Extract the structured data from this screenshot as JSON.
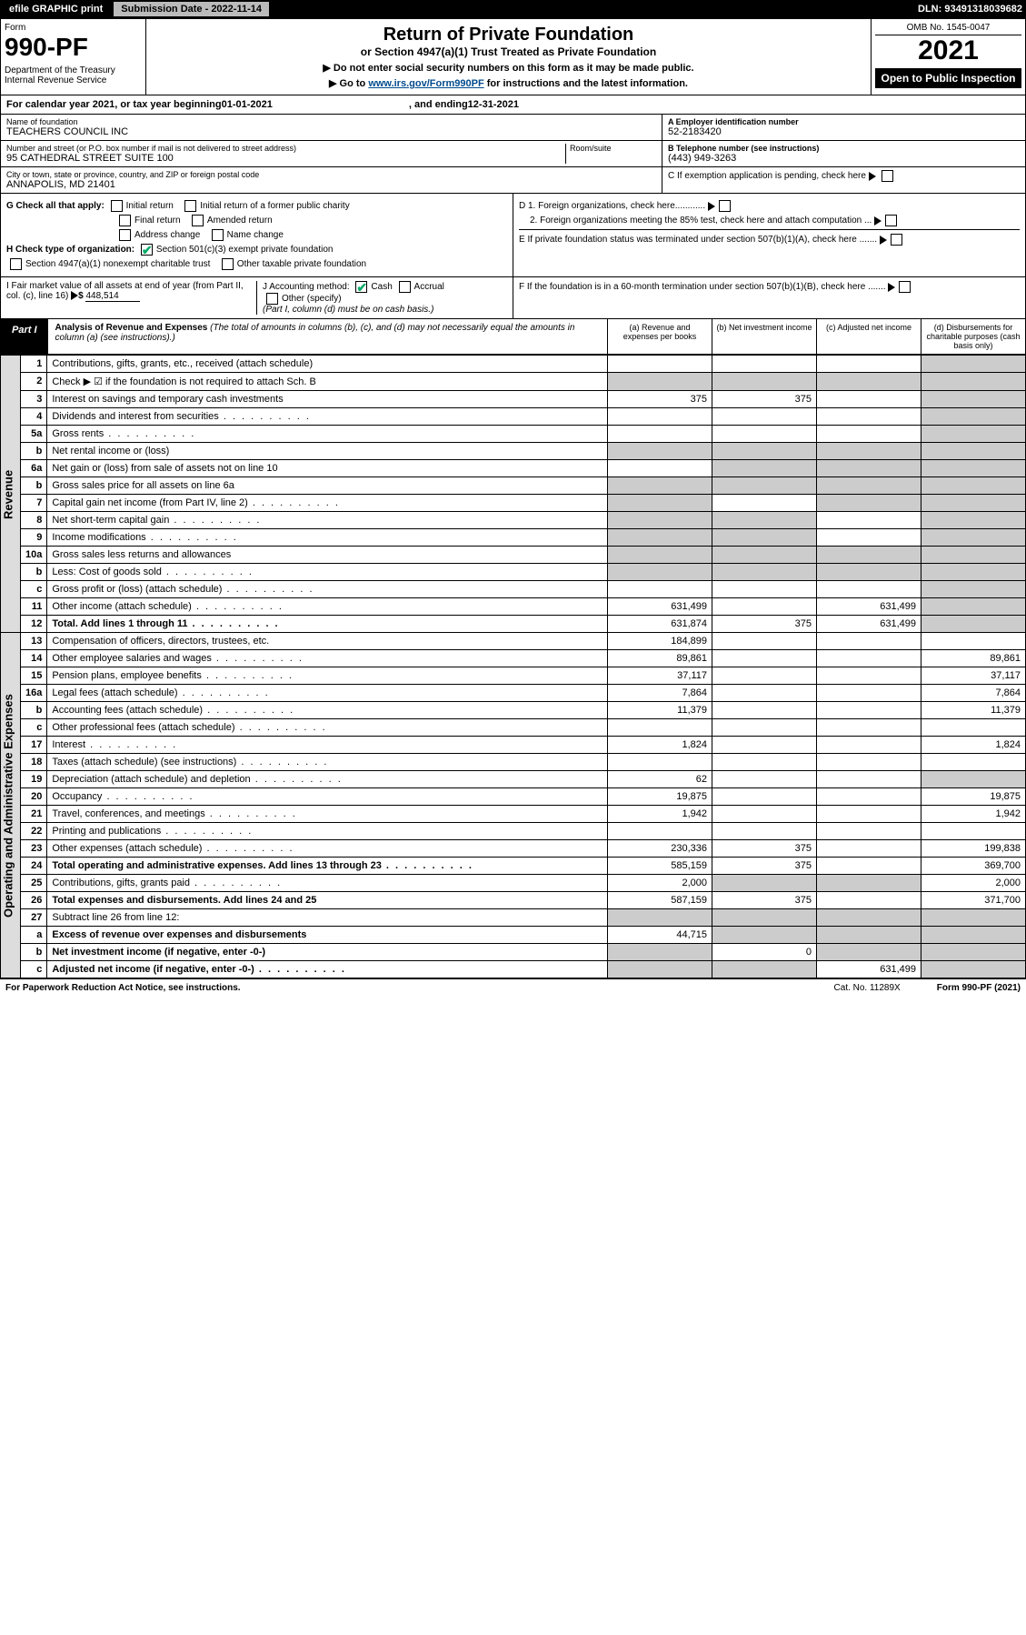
{
  "topbar": {
    "efile": "efile GRAPHIC print",
    "subdate_label": "Submission Date - 2022-11-14",
    "dln": "DLN: 93491318039682"
  },
  "header": {
    "form_label": "Form",
    "form_number": "990-PF",
    "dept": "Department of the Treasury\nInternal Revenue Service",
    "title": "Return of Private Foundation",
    "subtitle": "or Section 4947(a)(1) Trust Treated as Private Foundation",
    "note1": "▶ Do not enter social security numbers on this form as it may be made public.",
    "note2_prefix": "▶ Go to ",
    "note2_link": "www.irs.gov/Form990PF",
    "note2_suffix": " for instructions and the latest information.",
    "omb": "OMB No. 1545-0047",
    "year": "2021",
    "open": "Open to Public Inspection"
  },
  "calyear": {
    "prefix": "For calendar year 2021, or tax year beginning ",
    "begin": "01-01-2021",
    "mid": ", and ending ",
    "end": "12-31-2021"
  },
  "info": {
    "name_label": "Name of foundation",
    "name": "TEACHERS COUNCIL INC",
    "addr_label": "Number and street (or P.O. box number if mail is not delivered to street address)",
    "addr": "95 CATHEDRAL STREET SUITE 100",
    "room_label": "Room/suite",
    "city_label": "City or town, state or province, country, and ZIP or foreign postal code",
    "city": "ANNAPOLIS, MD  21401",
    "ein_label": "A Employer identification number",
    "ein": "52-2183420",
    "phone_label": "B Telephone number (see instructions)",
    "phone": "(443) 949-3263",
    "c_label": "C If exemption application is pending, check here",
    "d1": "D 1. Foreign organizations, check here............",
    "d2": "2. Foreign organizations meeting the 85% test, check here and attach computation ...",
    "e": "E  If private foundation status was terminated under section 507(b)(1)(A), check here .......",
    "f": "F  If the foundation is in a 60-month termination under section 507(b)(1)(B), check here ......."
  },
  "g": {
    "label": "G Check all that apply:",
    "opts": [
      "Initial return",
      "Initial return of a former public charity",
      "Final return",
      "Amended return",
      "Address change",
      "Name change"
    ]
  },
  "h": {
    "label": "H Check type of organization:",
    "opt1": "Section 501(c)(3) exempt private foundation",
    "opt2": "Section 4947(a)(1) nonexempt charitable trust",
    "opt3": "Other taxable private foundation"
  },
  "i": {
    "label": "I Fair market value of all assets at end of year (from Part II, col. (c), line 16)",
    "amt": "448,514"
  },
  "j": {
    "label": "J Accounting method:",
    "cash": "Cash",
    "accrual": "Accrual",
    "other": "Other (specify)",
    "note": "(Part I, column (d) must be on cash basis.)"
  },
  "part1": {
    "tab": "Part I",
    "title": "Analysis of Revenue and Expenses",
    "sub": " (The total of amounts in columns (b), (c), and (d) may not necessarily equal the amounts in column (a) (see instructions).)",
    "cols": {
      "a": "(a) Revenue and expenses per books",
      "b": "(b) Net investment income",
      "c": "(c) Adjusted net income",
      "d": "(d) Disbursements for charitable purposes (cash basis only)"
    }
  },
  "sides": {
    "rev": "Revenue",
    "exp": "Operating and Administrative Expenses"
  },
  "rows": [
    {
      "n": "1",
      "d": "Contributions, gifts, grants, etc., received (attach schedule)",
      "a": "",
      "b": "",
      "c": "",
      "dcol": "",
      "greyD": true
    },
    {
      "n": "2",
      "d": "Check ▶ ☑ if the foundation is not required to attach Sch. B",
      "a": "",
      "b": "",
      "c": "",
      "dcol": "",
      "allgrey": true
    },
    {
      "n": "3",
      "d": "Interest on savings and temporary cash investments",
      "a": "375",
      "b": "375",
      "c": "",
      "dcol": "",
      "greyD": true
    },
    {
      "n": "4",
      "d": "Dividends and interest from securities",
      "a": "",
      "b": "",
      "c": "",
      "dcol": "",
      "greyD": true,
      "dots": true
    },
    {
      "n": "5a",
      "d": "Gross rents",
      "a": "",
      "b": "",
      "c": "",
      "dcol": "",
      "greyD": true,
      "dots": true
    },
    {
      "n": "b",
      "d": "Net rental income or (loss)",
      "a": "",
      "b": "",
      "c": "",
      "dcol": "",
      "allgrey": true
    },
    {
      "n": "6a",
      "d": "Net gain or (loss) from sale of assets not on line 10",
      "a": "",
      "b": "",
      "c": "",
      "dcol": "",
      "greyBCD": true
    },
    {
      "n": "b",
      "d": "Gross sales price for all assets on line 6a",
      "a": "",
      "b": "",
      "c": "",
      "dcol": "",
      "allgrey": true
    },
    {
      "n": "7",
      "d": "Capital gain net income (from Part IV, line 2)",
      "a": "",
      "b": "",
      "c": "",
      "dcol": "",
      "greyA": true,
      "greyCD": true,
      "dots": true
    },
    {
      "n": "8",
      "d": "Net short-term capital gain",
      "a": "",
      "b": "",
      "c": "",
      "dcol": "",
      "greyAB": true,
      "greyD": true,
      "dots": true
    },
    {
      "n": "9",
      "d": "Income modifications",
      "a": "",
      "b": "",
      "c": "",
      "dcol": "",
      "greyAB": true,
      "greyD": true,
      "dots": true
    },
    {
      "n": "10a",
      "d": "Gross sales less returns and allowances",
      "a": "",
      "b": "",
      "c": "",
      "dcol": "",
      "allgrey": true
    },
    {
      "n": "b",
      "d": "Less: Cost of goods sold",
      "a": "",
      "b": "",
      "c": "",
      "dcol": "",
      "allgrey": true,
      "dots": true
    },
    {
      "n": "c",
      "d": "Gross profit or (loss) (attach schedule)",
      "a": "",
      "b": "",
      "c": "",
      "dcol": "",
      "greyD": true,
      "dots": true
    },
    {
      "n": "11",
      "d": "Other income (attach schedule)",
      "a": "631,499",
      "b": "",
      "c": "631,499",
      "dcol": "",
      "greyD": true,
      "dots": true
    },
    {
      "n": "12",
      "d": "Total. Add lines 1 through 11",
      "a": "631,874",
      "b": "375",
      "c": "631,499",
      "dcol": "",
      "greyD": true,
      "bold": true,
      "dots": true
    },
    {
      "n": "13",
      "d": "Compensation of officers, directors, trustees, etc.",
      "a": "184,899",
      "b": "",
      "c": "",
      "dcol": ""
    },
    {
      "n": "14",
      "d": "Other employee salaries and wages",
      "a": "89,861",
      "b": "",
      "c": "",
      "dcol": "89,861",
      "dots": true
    },
    {
      "n": "15",
      "d": "Pension plans, employee benefits",
      "a": "37,117",
      "b": "",
      "c": "",
      "dcol": "37,117",
      "dots": true
    },
    {
      "n": "16a",
      "d": "Legal fees (attach schedule)",
      "a": "7,864",
      "b": "",
      "c": "",
      "dcol": "7,864",
      "dots": true
    },
    {
      "n": "b",
      "d": "Accounting fees (attach schedule)",
      "a": "11,379",
      "b": "",
      "c": "",
      "dcol": "11,379",
      "dots": true
    },
    {
      "n": "c",
      "d": "Other professional fees (attach schedule)",
      "a": "",
      "b": "",
      "c": "",
      "dcol": "",
      "dots": true
    },
    {
      "n": "17",
      "d": "Interest",
      "a": "1,824",
      "b": "",
      "c": "",
      "dcol": "1,824",
      "dots": true
    },
    {
      "n": "18",
      "d": "Taxes (attach schedule) (see instructions)",
      "a": "",
      "b": "",
      "c": "",
      "dcol": "",
      "dots": true
    },
    {
      "n": "19",
      "d": "Depreciation (attach schedule) and depletion",
      "a": "62",
      "b": "",
      "c": "",
      "dcol": "",
      "greyD": true,
      "dots": true
    },
    {
      "n": "20",
      "d": "Occupancy",
      "a": "19,875",
      "b": "",
      "c": "",
      "dcol": "19,875",
      "dots": true
    },
    {
      "n": "21",
      "d": "Travel, conferences, and meetings",
      "a": "1,942",
      "b": "",
      "c": "",
      "dcol": "1,942",
      "dots": true
    },
    {
      "n": "22",
      "d": "Printing and publications",
      "a": "",
      "b": "",
      "c": "",
      "dcol": "",
      "dots": true
    },
    {
      "n": "23",
      "d": "Other expenses (attach schedule)",
      "a": "230,336",
      "b": "375",
      "c": "",
      "dcol": "199,838",
      "dots": true
    },
    {
      "n": "24",
      "d": "Total operating and administrative expenses. Add lines 13 through 23",
      "a": "585,159",
      "b": "375",
      "c": "",
      "dcol": "369,700",
      "bold": true,
      "dots": true
    },
    {
      "n": "25",
      "d": "Contributions, gifts, grants paid",
      "a": "2,000",
      "b": "",
      "c": "",
      "dcol": "2,000",
      "greyBC": true,
      "dots": true
    },
    {
      "n": "26",
      "d": "Total expenses and disbursements. Add lines 24 and 25",
      "a": "587,159",
      "b": "375",
      "c": "",
      "dcol": "371,700",
      "bold": true
    },
    {
      "n": "27",
      "d": "Subtract line 26 from line 12:",
      "a": "",
      "b": "",
      "c": "",
      "dcol": "",
      "allgrey": true
    },
    {
      "n": "a",
      "d": "Excess of revenue over expenses and disbursements",
      "a": "44,715",
      "b": "",
      "c": "",
      "dcol": "",
      "greyBCD": true,
      "bold": true
    },
    {
      "n": "b",
      "d": "Net investment income (if negative, enter -0-)",
      "a": "",
      "b": "0",
      "c": "",
      "dcol": "",
      "greyA": true,
      "greyCD": true,
      "bold": true
    },
    {
      "n": "c",
      "d": "Adjusted net income (if negative, enter -0-)",
      "a": "",
      "b": "",
      "c": "631,499",
      "dcol": "",
      "greyAB": true,
      "greyD": true,
      "bold": true,
      "dots": true
    }
  ],
  "footer": {
    "left": "For Paperwork Reduction Act Notice, see instructions.",
    "mid": "Cat. No. 11289X",
    "right": "Form 990-PF (2021)"
  }
}
